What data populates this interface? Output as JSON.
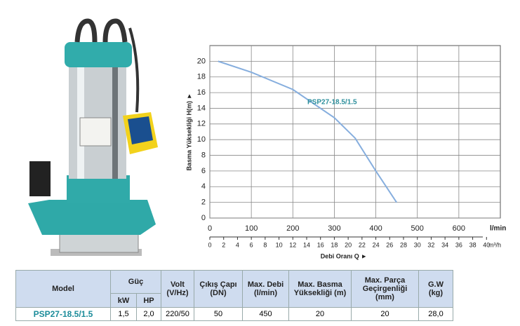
{
  "chart_data": {
    "type": "line",
    "ylabel": "Basma Yüksekliği H(m) ►",
    "xlabel": "Debi Oranı Q ►",
    "x_unit": "l/min",
    "x2_unit": "m³/h",
    "xlim": [
      0,
      700
    ],
    "xticks": [
      0,
      100,
      200,
      300,
      400,
      500,
      600
    ],
    "x2lim": [
      0,
      42
    ],
    "x2ticks": [
      0,
      2,
      4,
      6,
      8,
      10,
      12,
      14,
      16,
      18,
      20,
      22,
      24,
      26,
      28,
      30,
      32,
      34,
      36,
      38,
      40
    ],
    "ylim": [
      0,
      22
    ],
    "yticks": [
      0,
      2,
      4,
      6,
      8,
      10,
      12,
      14,
      16,
      18,
      20
    ],
    "grid": true,
    "x": [
      20,
      100,
      200,
      300,
      350,
      400,
      450
    ],
    "series": [
      {
        "name": "PSP27-18.5/1.5",
        "color": "#86aede",
        "values": [
          20,
          18.6,
          16.4,
          12.8,
          10.2,
          6,
          2
        ]
      }
    ]
  },
  "table": {
    "header": [
      "Model",
      "Güç",
      "Volt (V/Hz)",
      "Çıkış Çapı (DN)",
      "Max. Debi (l/min)",
      "Max. Basma Yüksekliği (m)",
      "Max. Parça Geçirgenliği (mm)",
      "G.W (kg)"
    ],
    "subheader": [
      "kW",
      "HP"
    ],
    "rows": [
      [
        "PSP27-18.5/1.5",
        "1,5",
        "2,0",
        "220/50",
        "50",
        "450",
        "20",
        "20",
        "28,0"
      ]
    ]
  }
}
